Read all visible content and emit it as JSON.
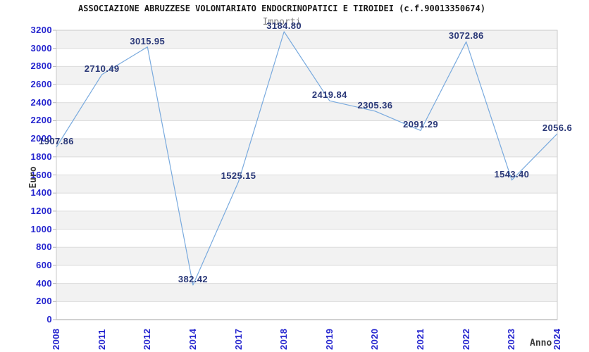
{
  "header": {
    "title": "ASSOCIAZIONE ABRUZZESE VOLONTARIATO ENDOCRINOPATICI E TIROIDEI (c.f.90013350674)",
    "subtitle": "Importi"
  },
  "chart_data": {
    "type": "line",
    "title": "Importi",
    "xlabel": "Anno",
    "ylabel": "Euro",
    "categories": [
      "2008",
      "2011",
      "2012",
      "2014",
      "2017",
      "2018",
      "2019",
      "2020",
      "2021",
      "2022",
      "2023",
      "2024"
    ],
    "values": [
      1907.86,
      2710.49,
      3015.95,
      382.42,
      1525.15,
      3184.8,
      2419.84,
      2305.36,
      2091.29,
      3072.86,
      1543.4,
      2056.6
    ],
    "point_labels": [
      "1907.86",
      "2710.49",
      "3015.95",
      "382.42",
      "1525.15",
      "3184.80",
      "2419.84",
      "2305.36",
      "2091.29",
      "3072.86",
      "1543.40",
      "2056.6"
    ],
    "ylim": [
      0,
      3200
    ],
    "y_ticks": [
      0,
      200,
      400,
      600,
      800,
      1000,
      1200,
      1400,
      1600,
      1800,
      2000,
      2200,
      2400,
      2600,
      2800,
      3000,
      3200
    ],
    "grid": true,
    "legend": "none",
    "plot_style": "alternating horizontal bands every 200 units",
    "colors": {
      "line": "#79aade",
      "tick_label": "#2525cf",
      "data_label": "#2a3878",
      "band": "#f2f2f2",
      "grid": "#dcdcdc",
      "border": "#c9c9c9",
      "axis_line": "#a3a3a3",
      "tick_mark": "#b5b5b5",
      "title": "#1a1a1a",
      "subtitle": "#808080",
      "axis_title": "#3a3a3a"
    }
  }
}
